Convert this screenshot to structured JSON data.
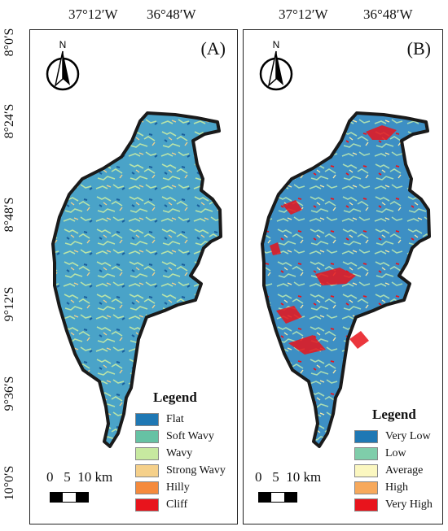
{
  "longitudes": [
    "37°12′W",
    "36°48′W"
  ],
  "latitudes": [
    "8°0′S",
    "8°24′S",
    "8°48′S",
    "9°12′S",
    "9°36′S",
    "10°0′S"
  ],
  "north_label": "N",
  "scale_label": "0   5  10 km",
  "panels": [
    {
      "letter": "(A)",
      "legend_title": "Legend",
      "legend_items": [
        {
          "label": "Flat",
          "color": "#1f78b4"
        },
        {
          "label": "Soft Wavy",
          "color": "#66c2a4"
        },
        {
          "label": "Wavy",
          "color": "#c7e9a0"
        },
        {
          "label": "Strong Wavy",
          "color": "#f5d08a"
        },
        {
          "label": "Hilly",
          "color": "#f58a3c"
        },
        {
          "label": "Cliff",
          "color": "#e8141c"
        }
      ]
    },
    {
      "letter": "(B)",
      "legend_title": "Legend",
      "legend_items": [
        {
          "label": "Very Low",
          "color": "#1f78b4"
        },
        {
          "label": "Low",
          "color": "#7fcdaa"
        },
        {
          "label": "Average",
          "color": "#fbf7c0"
        },
        {
          "label": "High",
          "color": "#f7a95c"
        },
        {
          "label": "Very High",
          "color": "#e8141c"
        }
      ]
    }
  ]
}
